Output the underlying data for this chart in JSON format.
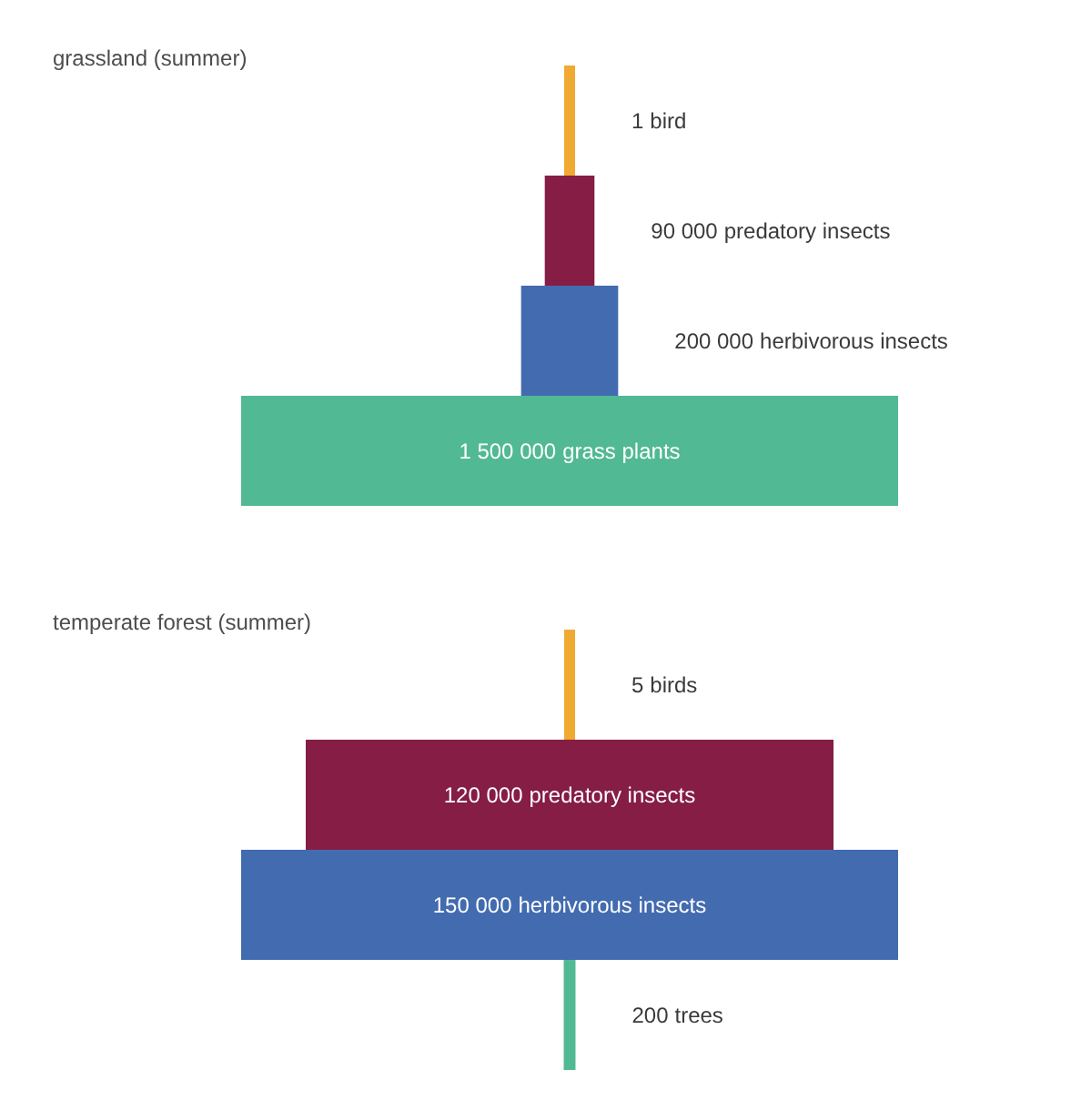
{
  "chart_data": [
    {
      "type": "other",
      "title": "grassland (summer)",
      "categories": [
        "bird",
        "predatory insects",
        "herbivorous insects",
        "grass plants"
      ],
      "values": [
        1,
        90000,
        200000,
        1500000
      ],
      "value_labels": [
        "1",
        "90 000",
        "200 000",
        "1 500 000"
      ],
      "colors": [
        "#f0aa32",
        "#851d45",
        "#426bb0",
        "#51b993"
      ]
    },
    {
      "type": "other",
      "title": "temperate forest (summer)",
      "categories": [
        "birds",
        "predatory insects",
        "herbivorous insects",
        "trees"
      ],
      "values": [
        5,
        120000,
        150000,
        200
      ],
      "value_labels": [
        "5",
        "120 000",
        "150 000",
        "200"
      ],
      "colors": [
        "#f0aa32",
        "#851d45",
        "#426bb0",
        "#51b993"
      ]
    }
  ]
}
